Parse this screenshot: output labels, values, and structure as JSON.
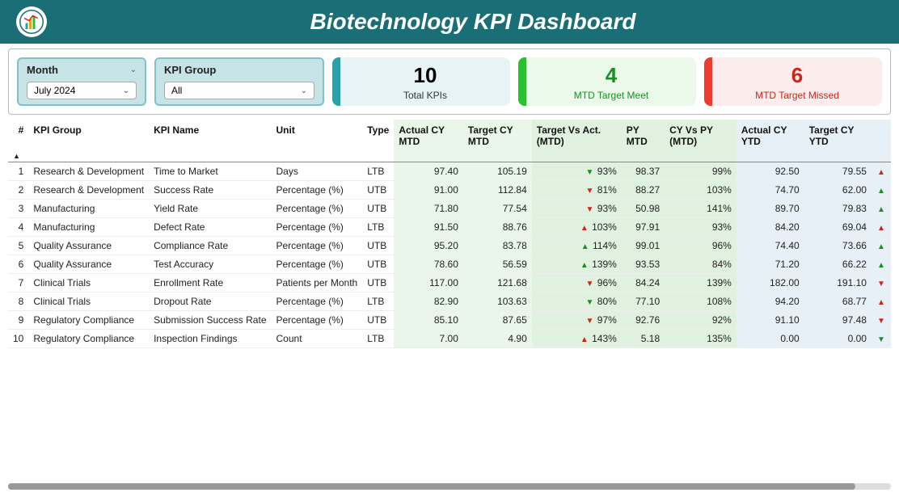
{
  "header": {
    "title": "Biotechnology KPI Dashboard"
  },
  "filters": {
    "month": {
      "label": "Month",
      "value": "July 2024"
    },
    "group": {
      "label": "KPI Group",
      "value": "All"
    }
  },
  "cards": {
    "total": {
      "value": "10",
      "label": "Total KPIs"
    },
    "meet": {
      "value": "4",
      "label": "MTD Target Meet"
    },
    "missed": {
      "value": "6",
      "label": "MTD Target Missed"
    }
  },
  "columns": {
    "idx": "#",
    "group": "KPI Group",
    "name": "KPI Name",
    "unit": "Unit",
    "type": "Type",
    "act_mtd": "Actual CY MTD",
    "tgt_mtd": "Target CY MTD",
    "tva": "Target Vs Act. (MTD)",
    "py_mtd": "PY MTD",
    "cy_py": "CY Vs PY (MTD)",
    "act_ytd": "Actual CY YTD",
    "tgt_ytd": "Target CY YTD"
  },
  "rows": [
    {
      "idx": "1",
      "group": "Research & Development",
      "name": "Time to Market",
      "unit": "Days",
      "type": "LTB",
      "act_mtd": "97.40",
      "tgt_mtd": "105.19",
      "tva_dir": "dn",
      "tva": "93%",
      "py_mtd": "98.37",
      "cy_py": "99%",
      "act_ytd": "92.50",
      "tgt_ytd": "79.55",
      "ytd_dir": "up"
    },
    {
      "idx": "2",
      "group": "Research & Development",
      "name": "Success Rate",
      "unit": "Percentage (%)",
      "type": "UTB",
      "act_mtd": "91.00",
      "tgt_mtd": "112.84",
      "tva_dir": "dn",
      "tva": "81%",
      "py_mtd": "88.27",
      "cy_py": "103%",
      "act_ytd": "74.70",
      "tgt_ytd": "62.00",
      "ytd_dir": "up"
    },
    {
      "idx": "3",
      "group": "Manufacturing",
      "name": "Yield Rate",
      "unit": "Percentage (%)",
      "type": "UTB",
      "act_mtd": "71.80",
      "tgt_mtd": "77.54",
      "tva_dir": "dn",
      "tva": "93%",
      "py_mtd": "50.98",
      "cy_py": "141%",
      "act_ytd": "89.70",
      "tgt_ytd": "79.83",
      "ytd_dir": "up"
    },
    {
      "idx": "4",
      "group": "Manufacturing",
      "name": "Defect Rate",
      "unit": "Percentage (%)",
      "type": "LTB",
      "act_mtd": "91.50",
      "tgt_mtd": "88.76",
      "tva_dir": "up",
      "tva": "103%",
      "py_mtd": "97.91",
      "cy_py": "93%",
      "act_ytd": "84.20",
      "tgt_ytd": "69.04",
      "ytd_dir": "up"
    },
    {
      "idx": "5",
      "group": "Quality Assurance",
      "name": "Compliance Rate",
      "unit": "Percentage (%)",
      "type": "UTB",
      "act_mtd": "95.20",
      "tgt_mtd": "83.78",
      "tva_dir": "up",
      "tva": "114%",
      "py_mtd": "99.01",
      "cy_py": "96%",
      "act_ytd": "74.40",
      "tgt_ytd": "73.66",
      "ytd_dir": "up"
    },
    {
      "idx": "6",
      "group": "Quality Assurance",
      "name": "Test Accuracy",
      "unit": "Percentage (%)",
      "type": "UTB",
      "act_mtd": "78.60",
      "tgt_mtd": "56.59",
      "tva_dir": "up",
      "tva": "139%",
      "py_mtd": "93.53",
      "cy_py": "84%",
      "act_ytd": "71.20",
      "tgt_ytd": "66.22",
      "ytd_dir": "up"
    },
    {
      "idx": "7",
      "group": "Clinical Trials",
      "name": "Enrollment Rate",
      "unit": "Patients per Month",
      "type": "UTB",
      "act_mtd": "117.00",
      "tgt_mtd": "121.68",
      "tva_dir": "dn",
      "tva": "96%",
      "py_mtd": "84.24",
      "cy_py": "139%",
      "act_ytd": "182.00",
      "tgt_ytd": "191.10",
      "ytd_dir": "dn"
    },
    {
      "idx": "8",
      "group": "Clinical Trials",
      "name": "Dropout Rate",
      "unit": "Percentage (%)",
      "type": "LTB",
      "act_mtd": "82.90",
      "tgt_mtd": "103.63",
      "tva_dir": "dn",
      "tva": "80%",
      "py_mtd": "77.10",
      "cy_py": "108%",
      "act_ytd": "94.20",
      "tgt_ytd": "68.77",
      "ytd_dir": "up"
    },
    {
      "idx": "9",
      "group": "Regulatory Compliance",
      "name": "Submission Success Rate",
      "unit": "Percentage (%)",
      "type": "UTB",
      "act_mtd": "85.10",
      "tgt_mtd": "87.65",
      "tva_dir": "dn",
      "tva": "97%",
      "py_mtd": "92.76",
      "cy_py": "92%",
      "act_ytd": "91.10",
      "tgt_ytd": "97.48",
      "ytd_dir": "dn"
    },
    {
      "idx": "10",
      "group": "Regulatory Compliance",
      "name": "Inspection Findings",
      "unit": "Count",
      "type": "LTB",
      "act_mtd": "7.00",
      "tgt_mtd": "4.90",
      "tva_dir": "up",
      "tva": "143%",
      "py_mtd": "5.18",
      "cy_py": "135%",
      "act_ytd": "0.00",
      "tgt_ytd": "0.00",
      "ytd_dir": "dn"
    }
  ],
  "colors": {
    "header_bg": "#1a6e76",
    "accent": "#2aa0aa",
    "green": "#27c22e",
    "red": "#f03a2d"
  }
}
